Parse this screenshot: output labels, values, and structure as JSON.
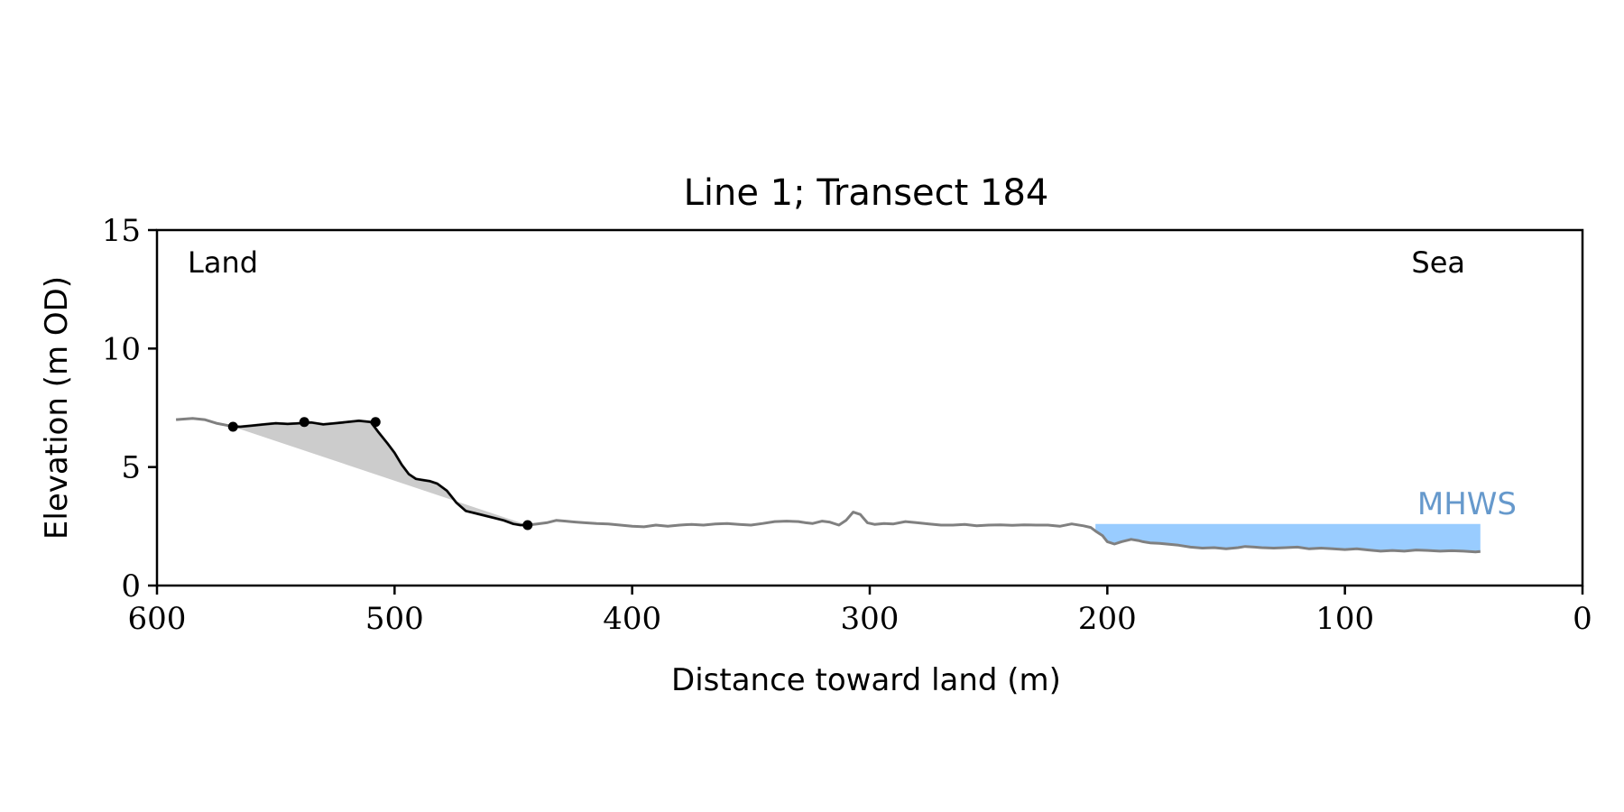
{
  "chart_data": {
    "type": "line",
    "title": "Line 1; Transect 184",
    "xlabel": "Distance toward land (m)",
    "ylabel": "Elevation (m OD)",
    "xlim": [
      600,
      0
    ],
    "ylim": [
      0,
      15
    ],
    "xticks": [
      "600",
      "500",
      "400",
      "300",
      "200",
      "100",
      "0"
    ],
    "yticks": [
      "0",
      "5",
      "10",
      "15"
    ],
    "grid": false,
    "annotations": {
      "left_label": "Land",
      "right_label": "Sea",
      "mhws_label": "MHWS"
    },
    "mhws": {
      "level": 2.6,
      "x_start": 205,
      "x_end": 43
    },
    "colors": {
      "profile": "#808080",
      "highlight": "#000000",
      "area_fill": "#cccccc",
      "water_fill": "#99ccff",
      "mhws_text": "#6699cc"
    },
    "profile": {
      "x": [
        592,
        585,
        580,
        575,
        570,
        565,
        560,
        555,
        550,
        545,
        540,
        535,
        530,
        525,
        520,
        515,
        510,
        507,
        503,
        500,
        497,
        494,
        491,
        488,
        485,
        482,
        478,
        474,
        470,
        466,
        462,
        458,
        454,
        450,
        447,
        444,
        440,
        436,
        432,
        428,
        424,
        420,
        415,
        410,
        405,
        400,
        395,
        390,
        385,
        380,
        375,
        370,
        365,
        360,
        355,
        350,
        345,
        340,
        335,
        330,
        327,
        324,
        320,
        317,
        313,
        310,
        307,
        304,
        301,
        298,
        294,
        290,
        285,
        280,
        275,
        270,
        265,
        260,
        255,
        250,
        245,
        240,
        235,
        230,
        225,
        220,
        215,
        210,
        207,
        205,
        202,
        200,
        197,
        194,
        190,
        187,
        185,
        182,
        178,
        175,
        170,
        165,
        160,
        155,
        150,
        147,
        145,
        142,
        138,
        135,
        130,
        125,
        120,
        115,
        110,
        105,
        100,
        95,
        90,
        85,
        80,
        75,
        70,
        65,
        60,
        55,
        50,
        45,
        43
      ],
      "y": [
        7.0,
        7.05,
        7.0,
        6.85,
        6.75,
        6.7,
        6.75,
        6.8,
        6.85,
        6.82,
        6.85,
        6.88,
        6.8,
        6.85,
        6.9,
        6.95,
        6.9,
        6.5,
        6.0,
        5.6,
        5.1,
        4.7,
        4.5,
        4.45,
        4.4,
        4.3,
        4.0,
        3.5,
        3.15,
        3.05,
        2.95,
        2.85,
        2.75,
        2.6,
        2.55,
        2.55,
        2.6,
        2.65,
        2.75,
        2.72,
        2.68,
        2.65,
        2.62,
        2.6,
        2.55,
        2.5,
        2.48,
        2.55,
        2.5,
        2.55,
        2.58,
        2.55,
        2.6,
        2.62,
        2.58,
        2.55,
        2.62,
        2.7,
        2.72,
        2.7,
        2.65,
        2.62,
        2.72,
        2.68,
        2.55,
        2.75,
        3.1,
        3.0,
        2.65,
        2.58,
        2.62,
        2.6,
        2.7,
        2.65,
        2.6,
        2.55,
        2.55,
        2.58,
        2.52,
        2.55,
        2.56,
        2.54,
        2.56,
        2.55,
        2.55,
        2.5,
        2.6,
        2.52,
        2.45,
        2.3,
        2.1,
        1.85,
        1.75,
        1.85,
        1.95,
        1.9,
        1.85,
        1.8,
        1.78,
        1.75,
        1.7,
        1.62,
        1.58,
        1.6,
        1.55,
        1.58,
        1.6,
        1.65,
        1.62,
        1.6,
        1.58,
        1.6,
        1.62,
        1.55,
        1.58,
        1.55,
        1.52,
        1.55,
        1.5,
        1.45,
        1.48,
        1.45,
        1.5,
        1.48,
        1.45,
        1.47,
        1.45,
        1.42,
        1.44
      ]
    },
    "highlight": {
      "x": [
        568,
        565,
        560,
        555,
        550,
        545,
        540,
        535,
        530,
        525,
        520,
        515,
        510,
        507,
        503,
        500,
        497,
        494,
        491,
        488,
        485,
        482,
        478,
        474,
        470,
        466,
        462,
        458,
        454,
        450,
        447,
        444
      ],
      "y": [
        6.7,
        6.7,
        6.75,
        6.8,
        6.85,
        6.82,
        6.85,
        6.88,
        6.8,
        6.85,
        6.9,
        6.95,
        6.9,
        6.5,
        6.0,
        5.6,
        5.1,
        4.7,
        4.5,
        4.45,
        4.4,
        4.3,
        4.0,
        3.5,
        3.15,
        3.05,
        2.95,
        2.85,
        2.75,
        2.6,
        2.55,
        2.55
      ]
    },
    "markers": {
      "x": [
        568,
        538,
        508,
        444
      ],
      "y": [
        6.7,
        6.9,
        6.9,
        2.55
      ]
    }
  }
}
